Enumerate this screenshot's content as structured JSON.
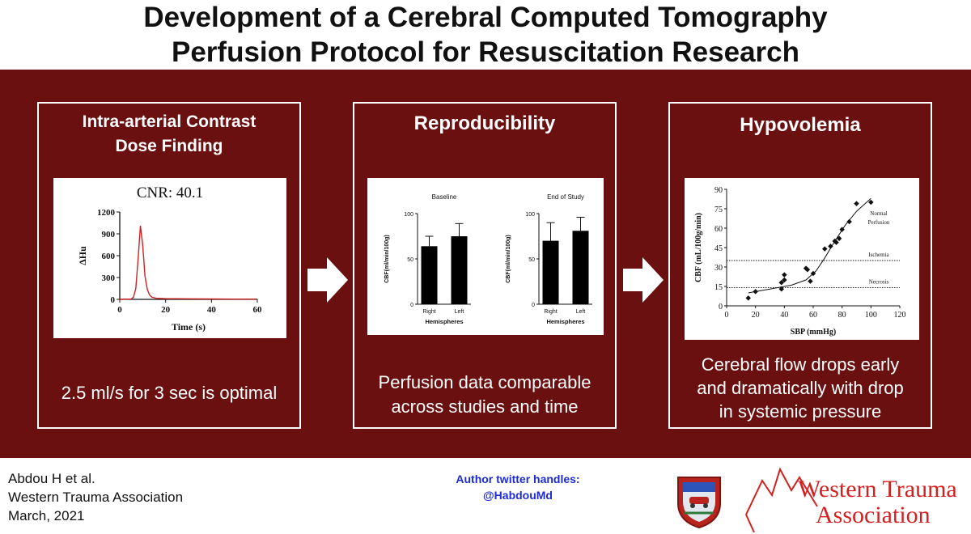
{
  "title": {
    "line1": "Development of a Cerebral Computed Tomography",
    "line2": "Perfusion Protocol for Resuscitation Research"
  },
  "colors": {
    "band": "#6b1010",
    "curve": "#cc2222",
    "footer_link": "#1d2bd6",
    "wta_red": "#d41f1f"
  },
  "panels": [
    {
      "heading_line1": "Intra-arterial Contrast",
      "heading_line2": "Dose Finding",
      "caption_line1": "2.5 ml/s for 3 sec is optimal",
      "caption_line2": ""
    },
    {
      "heading_line1": "Reproducibility",
      "heading_line2": "",
      "caption_line1": "Perfusion data comparable",
      "caption_line2": "across studies and time"
    },
    {
      "heading_line1": "Hypovolemia",
      "heading_line2": "",
      "caption_line1": "Cerebral flow drops early",
      "caption_line2": "and dramatically with drop",
      "caption_line3": "in systemic pressure"
    }
  ],
  "chart_data": [
    {
      "type": "line",
      "title": "CNR: 40.1",
      "xlabel": "Time (s)",
      "ylabel": "ΔHu",
      "xlim": [
        0,
        60
      ],
      "ylim": [
        0,
        1200
      ],
      "x_ticks": [
        0,
        20,
        40,
        60
      ],
      "y_ticks": [
        0,
        300,
        600,
        900,
        1200
      ],
      "series": [
        {
          "x": [
            0,
            5,
            6,
            7,
            8,
            9,
            10,
            11,
            12,
            13,
            14,
            16,
            20,
            30,
            40,
            50,
            60
          ],
          "y": [
            0,
            5,
            30,
            150,
            550,
            1010,
            750,
            320,
            140,
            60,
            30,
            15,
            10,
            8,
            6,
            4,
            3
          ]
        }
      ]
    },
    {
      "type": "bar",
      "title": "Baseline",
      "ylabel": "CBF(ml/min/100g)",
      "xlabel": "Hemispheres",
      "categories": [
        "Right",
        "Left"
      ],
      "values": [
        64,
        75
      ],
      "errors": [
        11,
        14
      ],
      "ylim": [
        0,
        100
      ],
      "y_ticks": [
        0,
        50,
        100
      ]
    },
    {
      "type": "bar",
      "title": "End of Study",
      "ylabel": "CBF(ml/min/100g)",
      "xlabel": "Hemispheres",
      "categories": [
        "Right",
        "Left"
      ],
      "values": [
        70,
        81
      ],
      "errors": [
        20,
        15
      ],
      "ylim": [
        0,
        100
      ],
      "y_ticks": [
        0,
        50,
        100
      ]
    },
    {
      "type": "scatter",
      "xlabel": "SBP (mmHg)",
      "ylabel": "CBF (mL/100g/min)",
      "xlim": [
        0,
        120
      ],
      "ylim": [
        0,
        90
      ],
      "x_ticks": [
        0,
        20,
        40,
        60,
        80,
        100,
        120
      ],
      "y_ticks": [
        0,
        15,
        30,
        45,
        60,
        75,
        90
      ],
      "points": [
        [
          15,
          6
        ],
        [
          20,
          11
        ],
        [
          38,
          13
        ],
        [
          38,
          18
        ],
        [
          40,
          20
        ],
        [
          40,
          24
        ],
        [
          55,
          29
        ],
        [
          56,
          28
        ],
        [
          58,
          19
        ],
        [
          60,
          25
        ],
        [
          68,
          44
        ],
        [
          72,
          46
        ],
        [
          75,
          50
        ],
        [
          76,
          49
        ],
        [
          78,
          52
        ],
        [
          80,
          59
        ],
        [
          85,
          65
        ],
        [
          90,
          79
        ],
        [
          100,
          80
        ]
      ],
      "fit_curve": [
        [
          15,
          10
        ],
        [
          30,
          13
        ],
        [
          45,
          16
        ],
        [
          55,
          20
        ],
        [
          62,
          27
        ],
        [
          68,
          37
        ],
        [
          75,
          50
        ],
        [
          82,
          62
        ],
        [
          90,
          73
        ],
        [
          100,
          83
        ]
      ],
      "thresholds": [
        {
          "y": 35,
          "label": "Ischemia"
        },
        {
          "y": 14,
          "label": "Necrosis"
        }
      ],
      "region_labels": [
        "Normal",
        "Perfusion"
      ]
    }
  ],
  "footer": {
    "author": "Abdou H et al.",
    "association": "Western Trauma Association",
    "date": "March, 2021",
    "twitter_heading": "Author twitter handles:",
    "twitter_handle": "@HabdouMd"
  },
  "logo": {
    "line1": "Western Trauma",
    "line2": "Association"
  }
}
